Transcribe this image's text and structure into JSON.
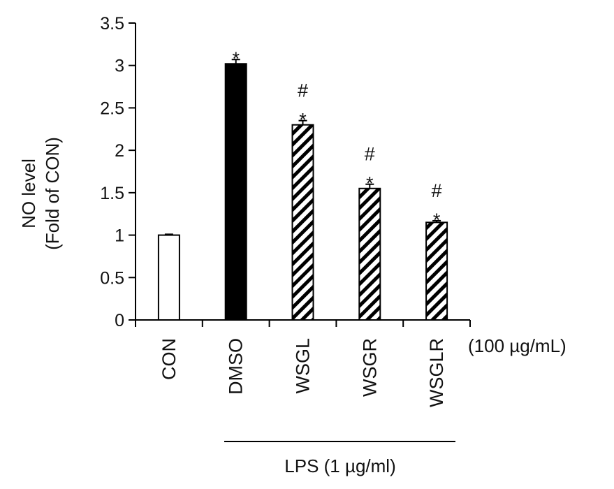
{
  "chart_data": {
    "type": "bar",
    "ylabel": [
      "NO level",
      "(Fold of CON)"
    ],
    "ylim": [
      0,
      3.5
    ],
    "yticks": [
      0,
      0.5,
      1,
      1.5,
      2,
      2.5,
      3,
      3.5
    ],
    "ytick_labels": [
      "0",
      "0.5",
      "1",
      "1.5",
      "2",
      "2.5",
      "3",
      "3.5"
    ],
    "categories": [
      "CON",
      "DMSO",
      "WSGL",
      "WSGR",
      "WSGLR"
    ],
    "values": [
      1.0,
      3.02,
      2.3,
      1.55,
      1.15
    ],
    "errors": [
      0.01,
      0.05,
      0.05,
      0.05,
      0.02
    ],
    "fills": [
      "white",
      "black",
      "hatched",
      "hatched",
      "hatched"
    ],
    "significance": [
      [],
      [
        "*"
      ],
      [
        "#",
        "*"
      ],
      [
        "#",
        "*"
      ],
      [
        "#",
        "*"
      ]
    ],
    "concentration_note": "(100 µg/mL)",
    "group_label": "LPS (1 µg/ml)",
    "grid": false,
    "legend": "none"
  }
}
